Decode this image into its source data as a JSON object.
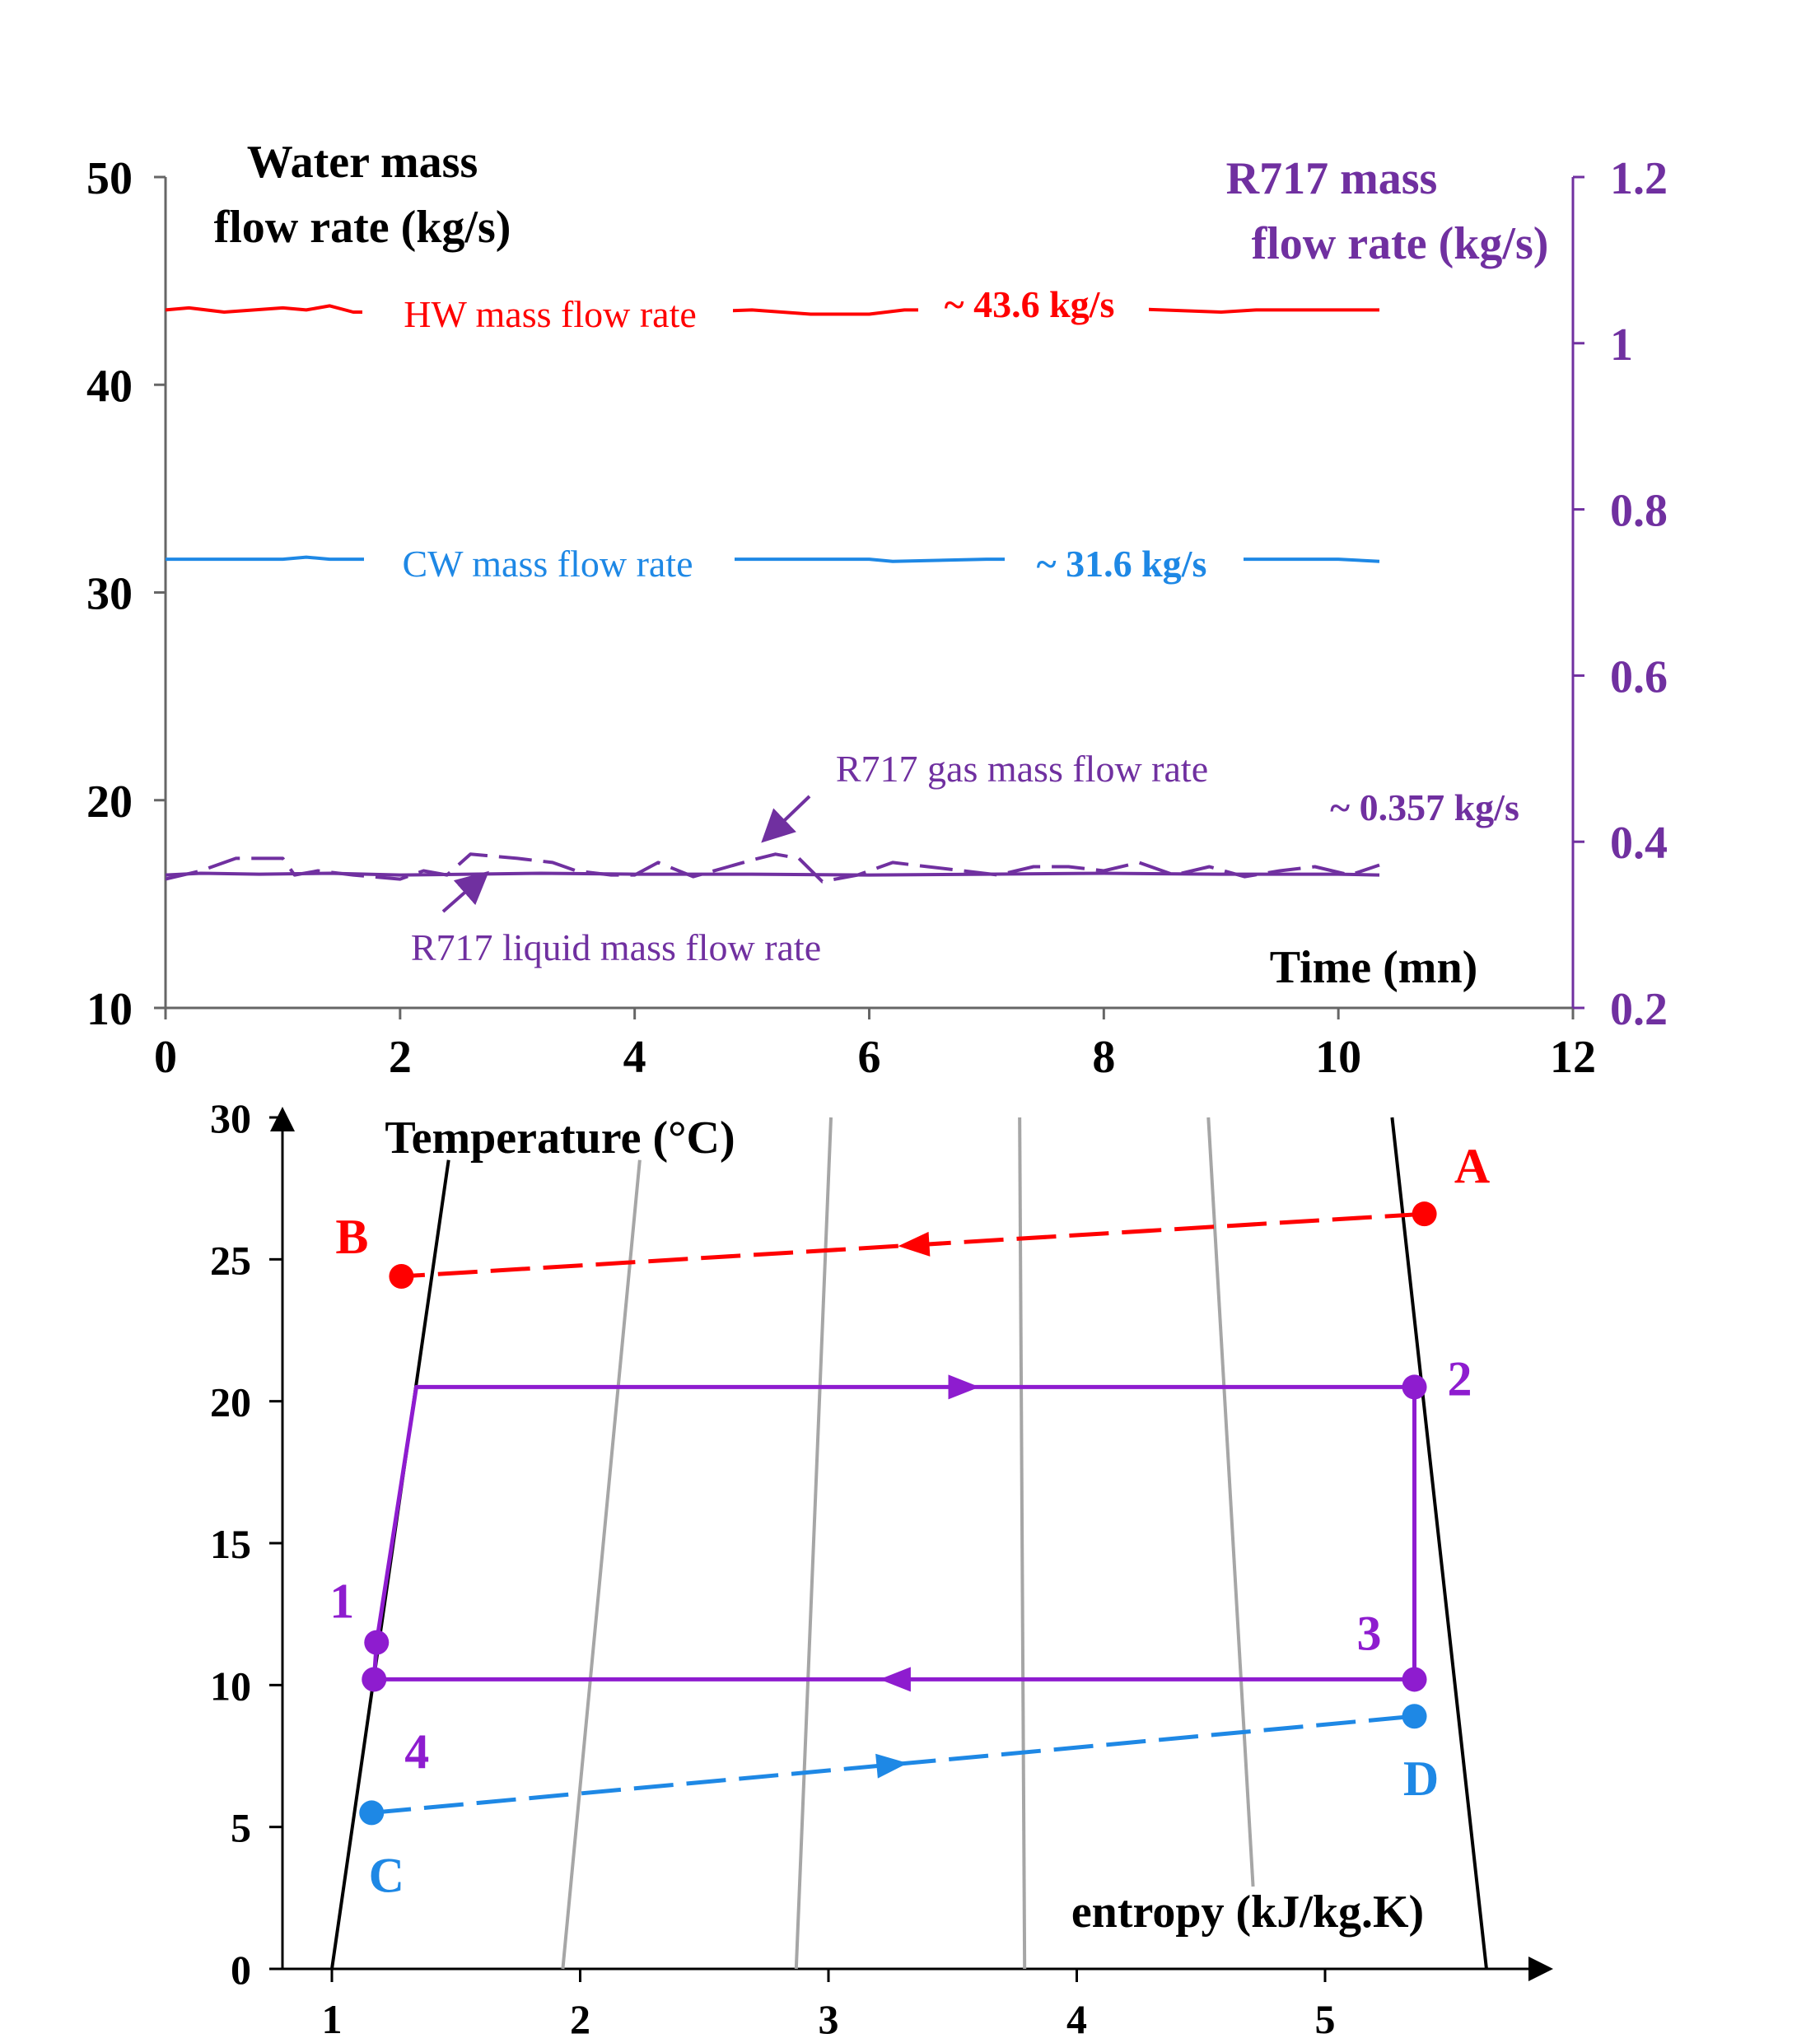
{
  "chart_data": [
    {
      "type": "line",
      "title": "",
      "xlabel": "Time (mn)",
      "ylabel": "Water mass flow rate (kg/s)",
      "ylabel_right": "R717 mass flow rate (kg/s)",
      "xlim": [
        0,
        12
      ],
      "ylim": [
        10,
        50
      ],
      "ylim_right": [
        0.2,
        1.2
      ],
      "xticks": [
        "0",
        "2",
        "4",
        "6",
        "8",
        "10",
        "12"
      ],
      "yticks": [
        "10",
        "20",
        "30",
        "40",
        "50"
      ],
      "yticks_right": [
        "0.2",
        "0.4",
        "0.6",
        "0.8",
        "1",
        "1.2"
      ],
      "grid": false,
      "series": [
        {
          "name": "HW mass flow rate",
          "axis": "left",
          "style": "solid",
          "color": "#ff0000",
          "annotation": "~ 43.6 kg/s",
          "x": [
            0,
            0.2,
            0.5,
            1.0,
            1.2,
            1.4,
            1.6,
            2.0,
            2.5,
            3.0,
            3.5,
            4.0,
            4.5,
            5.0,
            5.5,
            6.0,
            6.3,
            6.6,
            7.0,
            7.5,
            8.0,
            8.5,
            9.0,
            9.3,
            9.6,
            10.0,
            10.35
          ],
          "y": [
            43.6,
            43.7,
            43.5,
            43.7,
            43.6,
            43.8,
            43.5,
            43.5,
            43.6,
            43.6,
            43.7,
            43.6,
            43.5,
            43.6,
            43.4,
            43.4,
            43.6,
            43.6,
            43.5,
            43.5,
            43.7,
            43.6,
            43.5,
            43.6,
            43.6,
            43.6,
            43.6
          ]
        },
        {
          "name": "CW mass flow rate",
          "axis": "left",
          "style": "solid",
          "color": "#1e88e5",
          "annotation": "~ 31.6 kg/s",
          "x": [
            0,
            0.5,
            1.0,
            1.2,
            1.4,
            2.0,
            3.0,
            4.0,
            5.0,
            6.0,
            6.2,
            7.0,
            8.0,
            9.0,
            10.0,
            10.35
          ],
          "y": [
            31.6,
            31.6,
            31.6,
            31.7,
            31.6,
            31.6,
            31.6,
            31.6,
            31.6,
            31.6,
            31.5,
            31.6,
            31.6,
            31.6,
            31.6,
            31.5
          ]
        },
        {
          "name": "R717 gas mass flow rate",
          "axis": "right",
          "style": "dashed",
          "color": "#7030a0",
          "annotation": "~ 0.357 kg/s",
          "x": [
            0,
            0.3,
            0.6,
            1.0,
            1.1,
            1.3,
            1.6,
            2.0,
            2.2,
            2.4,
            2.6,
            3.0,
            3.3,
            3.5,
            3.8,
            4.0,
            4.2,
            4.5,
            4.8,
            5.0,
            5.2,
            5.4,
            5.6,
            5.9,
            6.2,
            6.5,
            6.8,
            7.1,
            7.4,
            7.7,
            8.0,
            8.3,
            8.6,
            8.9,
            9.2,
            9.5,
            9.8,
            10.1,
            10.35
          ],
          "y": [
            0.355,
            0.365,
            0.38,
            0.38,
            0.36,
            0.365,
            0.36,
            0.355,
            0.365,
            0.36,
            0.385,
            0.38,
            0.375,
            0.365,
            0.36,
            0.36,
            0.375,
            0.358,
            0.37,
            0.378,
            0.385,
            0.38,
            0.352,
            0.36,
            0.375,
            0.37,
            0.365,
            0.36,
            0.37,
            0.37,
            0.365,
            0.375,
            0.36,
            0.37,
            0.358,
            0.365,
            0.37,
            0.36,
            0.372
          ]
        },
        {
          "name": "R717 liquid mass flow rate",
          "axis": "right",
          "style": "solid",
          "color": "#7030a0",
          "x": [
            0,
            0.3,
            0.8,
            1.4,
            2.0,
            2.6,
            3.2,
            4.0,
            5.0,
            6.0,
            7.0,
            8.0,
            9.0,
            10.0,
            10.35
          ],
          "y": [
            0.36,
            0.362,
            0.361,
            0.362,
            0.36,
            0.361,
            0.362,
            0.361,
            0.361,
            0.36,
            0.361,
            0.362,
            0.361,
            0.361,
            0.36
          ]
        }
      ]
    },
    {
      "type": "line",
      "title": "",
      "xlabel": "entropy (kJ/kg.K)",
      "ylabel": "Temperature (°C)",
      "xlim": [
        0.8,
        5.9
      ],
      "ylim": [
        0,
        30
      ],
      "xticks": [
        "1",
        "2",
        "3",
        "4",
        "5"
      ],
      "yticks": [
        "0",
        "5",
        "10",
        "15",
        "20",
        "25",
        "30"
      ],
      "grid": false,
      "saturation_curves": [
        {
          "color": "#000000",
          "x": [
            1.0,
            1.47
          ],
          "y": [
            0,
            28.5
          ]
        },
        {
          "color": "#000000",
          "x": [
            5.65,
            5.27
          ],
          "y": [
            0,
            30
          ]
        }
      ],
      "isolines": [
        {
          "color": "#a6a6a6",
          "x": [
            1.93,
            2.24
          ],
          "y": [
            0,
            28.5
          ]
        },
        {
          "color": "#a6a6a6",
          "x": [
            2.87,
            3.01
          ],
          "y": [
            0,
            30
          ]
        },
        {
          "color": "#a6a6a6",
          "x": [
            3.79,
            3.77
          ],
          "y": [
            0,
            30
          ]
        },
        {
          "color": "#a6a6a6",
          "x": [
            4.71,
            4.53
          ],
          "y": [
            2.9,
            30
          ]
        }
      ],
      "series": [
        {
          "name": "",
          "style": "dashed",
          "color": "#ff0000",
          "x": [
            5.4,
            1.28
          ],
          "y": [
            26.6,
            24.4
          ],
          "labels": [
            "A",
            "B"
          ]
        },
        {
          "name": "",
          "style": "solid",
          "color": "#8e1ccf",
          "x": [
            1.18,
            1.34,
            5.36,
            5.36,
            1.17,
            1.18
          ],
          "y": [
            11.5,
            20.5,
            20.5,
            10.2,
            10.2,
            11.5
          ],
          "labels": [
            "1",
            "",
            "2",
            "3",
            "4",
            ""
          ]
        },
        {
          "name": "",
          "style": "dashed",
          "color": "#1e88e5",
          "x": [
            1.16,
            5.36
          ],
          "y": [
            5.5,
            8.9
          ],
          "labels": [
            "C",
            "D"
          ]
        }
      ]
    }
  ]
}
